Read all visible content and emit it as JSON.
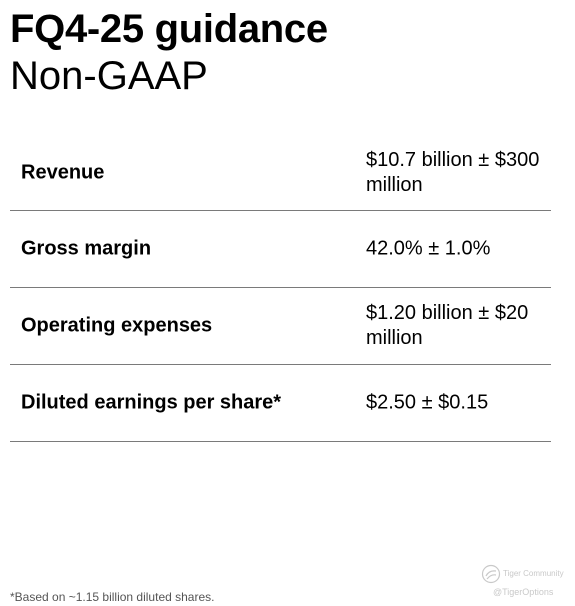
{
  "header": {
    "title": "FQ4-25 guidance",
    "subtitle": "Non-GAAP"
  },
  "table": {
    "rows": [
      {
        "label": "Revenue",
        "value": "$10.7 billion ± $300 million"
      },
      {
        "label": "Gross margin",
        "value": "42.0% ± 1.0%"
      },
      {
        "label": "Operating expenses",
        "value": "$1.20 billion ± $20 million"
      },
      {
        "label": "Diluted earnings per share*",
        "value": "$2.50 ± $0.15"
      }
    ]
  },
  "footnote": "*Based on ~1.15 billion diluted shares.",
  "watermark": {
    "community": "Tiger Community",
    "handle": "@TigerOptions",
    "icon": "tiger-logo-icon"
  }
}
